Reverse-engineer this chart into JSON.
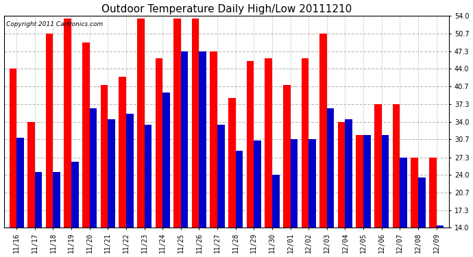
{
  "title": "Outdoor Temperature Daily High/Low 20111210",
  "copyright_text": "Copyright 2011 Cartronics.com",
  "dates": [
    "11/16",
    "11/17",
    "11/18",
    "11/19",
    "11/20",
    "11/21",
    "11/22",
    "11/23",
    "11/24",
    "11/25",
    "11/26",
    "11/27",
    "11/28",
    "11/29",
    "11/30",
    "12/01",
    "12/02",
    "12/03",
    "12/04",
    "12/05",
    "12/06",
    "12/07",
    "12/08",
    "12/09"
  ],
  "highs": [
    44.0,
    34.0,
    50.7,
    53.5,
    49.0,
    41.0,
    42.5,
    53.5,
    46.0,
    53.5,
    53.5,
    47.3,
    38.5,
    45.5,
    46.0,
    41.0,
    46.0,
    50.7,
    34.0,
    31.5,
    37.3,
    37.3,
    27.3,
    27.3
  ],
  "lows": [
    31.0,
    24.5,
    24.5,
    26.5,
    36.5,
    34.5,
    35.5,
    33.5,
    39.5,
    47.3,
    47.3,
    33.5,
    28.5,
    30.5,
    24.0,
    30.7,
    30.7,
    36.5,
    34.5,
    31.5,
    31.5,
    27.3,
    23.5,
    14.5
  ],
  "high_color": "#ff0000",
  "low_color": "#0000cc",
  "bg_color": "#ffffff",
  "grid_color": "#bbbbbb",
  "ylim_min": 14.0,
  "ylim_max": 54.0,
  "yticks": [
    14.0,
    17.3,
    20.7,
    24.0,
    27.3,
    30.7,
    34.0,
    37.3,
    40.7,
    44.0,
    47.3,
    50.7,
    54.0
  ],
  "bar_width": 0.4,
  "title_fontsize": 11,
  "tick_fontsize": 7,
  "copyright_fontsize": 6.5,
  "figwidth": 6.9,
  "figheight": 3.75,
  "dpi": 100
}
